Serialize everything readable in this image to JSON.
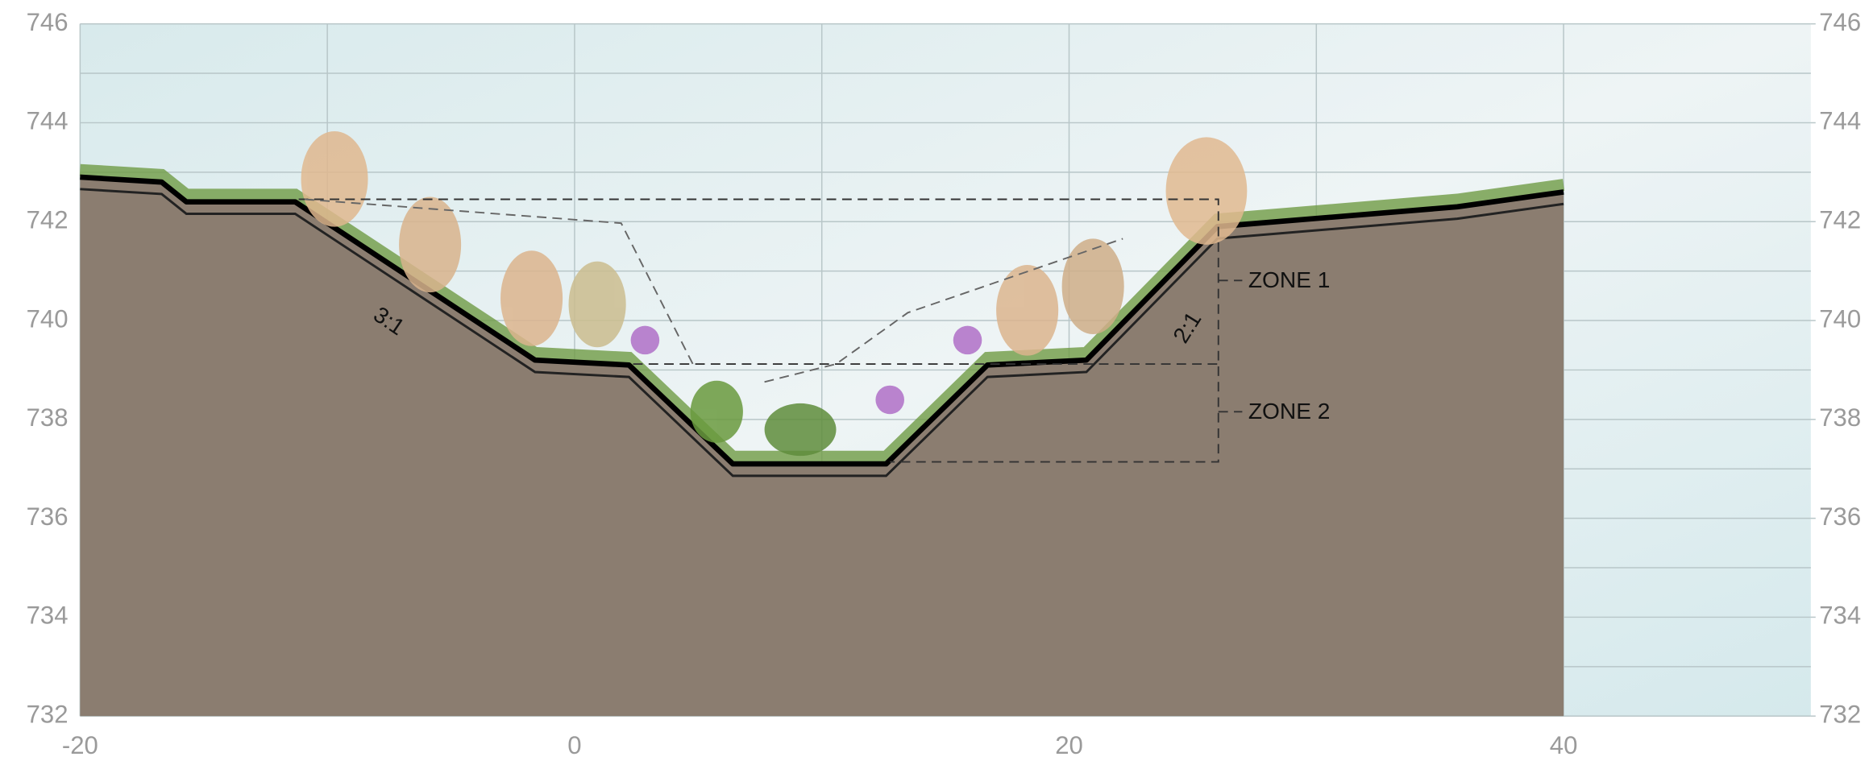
{
  "chart_data": {
    "type": "area",
    "x": [
      -20,
      -16.7,
      -15.7,
      -11.3,
      -1.6,
      2.2,
      6.4,
      12.6,
      16.7,
      20.7,
      26.0,
      35.7,
      40
    ],
    "values": [
      742.9,
      742.8,
      742.4,
      742.4,
      739.2,
      739.1,
      737.1,
      737.1,
      739.1,
      739.2,
      741.9,
      742.3,
      742.6
    ],
    "color": "#8b7d70",
    "xlim": [
      -20,
      50
    ],
    "xticks": [
      -20,
      0,
      20,
      40
    ],
    "ylim": [
      732,
      746
    ],
    "yticks": [
      732,
      734,
      736,
      738,
      740,
      742,
      744,
      746
    ],
    "y2lim": [
      732,
      746
    ],
    "y2ticks": [
      732,
      734,
      736,
      738,
      740,
      742,
      744,
      746
    ],
    "grid": true,
    "annotations": [
      "ZONE 1",
      "ZONE 2",
      "3:1",
      "2:1"
    ]
  }
}
